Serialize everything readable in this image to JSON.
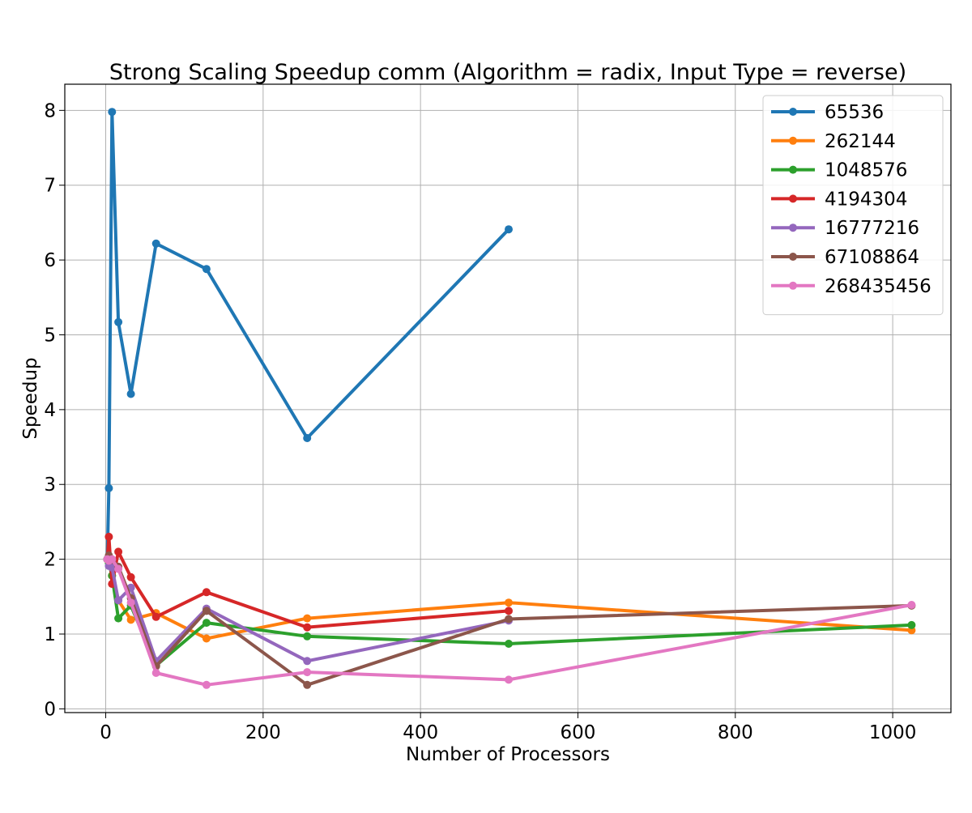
{
  "chart_data": {
    "type": "line",
    "title": "Strong Scaling Speedup comm (Algorithm = radix, Input Type = reverse)",
    "xlabel": "Number of Processors",
    "ylabel": "Speedup",
    "xlim": [
      -52,
      1074
    ],
    "ylim": [
      -0.05,
      8.35
    ],
    "xticks": [
      0,
      200,
      400,
      600,
      800,
      1000
    ],
    "yticks": [
      0,
      1,
      2,
      3,
      4,
      5,
      6,
      7,
      8
    ],
    "grid": true,
    "legend_position": "top-right",
    "series": [
      {
        "name": "65536",
        "color": "#1f77b4",
        "x": [
          2,
          4,
          8,
          16,
          32,
          64,
          128,
          256,
          512
        ],
        "y": [
          2.0,
          2.95,
          7.98,
          5.17,
          4.21,
          6.22,
          5.88,
          3.62,
          6.41
        ]
      },
      {
        "name": "262144",
        "color": "#ff7f0e",
        "x": [
          2,
          4,
          8,
          16,
          32,
          64,
          128,
          256,
          512,
          1024
        ],
        "y": [
          2.0,
          2.02,
          1.78,
          1.45,
          1.19,
          1.28,
          0.94,
          1.21,
          1.42,
          1.05
        ]
      },
      {
        "name": "1048576",
        "color": "#2ca02c",
        "x": [
          2,
          4,
          8,
          16,
          32,
          64,
          128,
          256,
          512,
          1024
        ],
        "y": [
          2.0,
          1.95,
          1.78,
          1.21,
          1.38,
          0.58,
          1.15,
          0.97,
          0.87,
          1.12
        ]
      },
      {
        "name": "4194304",
        "color": "#d62728",
        "x": [
          2,
          4,
          8,
          16,
          32,
          64,
          128,
          256,
          512
        ],
        "y": [
          2.0,
          2.3,
          1.67,
          2.1,
          1.76,
          1.23,
          1.56,
          1.09,
          1.31
        ]
      },
      {
        "name": "16777216",
        "color": "#9467bd",
        "x": [
          2,
          4,
          8,
          16,
          32,
          64,
          128,
          256,
          512
        ],
        "y": [
          2.0,
          1.91,
          1.89,
          1.45,
          1.62,
          0.64,
          1.34,
          0.64,
          1.18
        ]
      },
      {
        "name": "67108864",
        "color": "#8c564b",
        "x": [
          2,
          4,
          8,
          16,
          32,
          64,
          128,
          256,
          512,
          1024
        ],
        "y": [
          2.0,
          2.05,
          1.99,
          1.9,
          1.48,
          0.57,
          1.31,
          0.32,
          1.2,
          1.38
        ]
      },
      {
        "name": "268435456",
        "color": "#e377c2",
        "x": [
          2,
          4,
          8,
          16,
          32,
          64,
          128,
          256,
          512,
          1024
        ],
        "y": [
          2.0,
          1.98,
          2.0,
          1.87,
          1.42,
          0.48,
          0.32,
          0.49,
          0.39,
          1.39
        ]
      }
    ]
  }
}
